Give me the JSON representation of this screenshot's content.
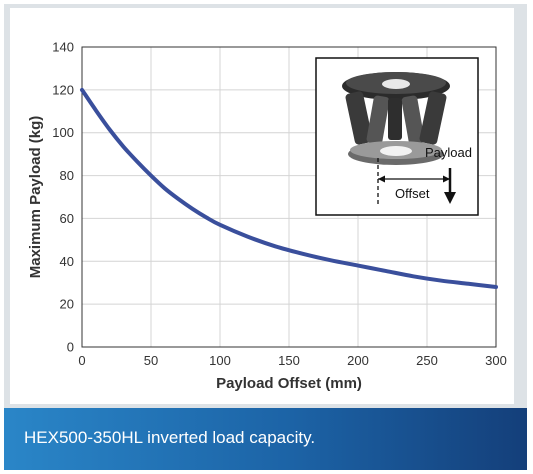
{
  "chart_data": {
    "type": "line",
    "title": "",
    "xlabel": "Payload Offset (mm)",
    "ylabel": "Maximum Payload (kg)",
    "xlim": [
      0,
      300
    ],
    "ylim": [
      0,
      140
    ],
    "xticks": [
      "0",
      "50",
      "100",
      "150",
      "200",
      "250",
      "300"
    ],
    "yticks": [
      "0",
      "20",
      "40",
      "60",
      "80",
      "100",
      "120",
      "140"
    ],
    "grid": true,
    "series": [
      {
        "color": "#3a4f9c",
        "x": [
          0,
          10,
          20,
          30,
          40,
          50,
          60,
          70,
          80,
          90,
          100,
          120,
          140,
          160,
          180,
          200,
          220,
          240,
          260,
          280,
          300
        ],
        "y": [
          120,
          110.5,
          101.5,
          93.5,
          86.5,
          80,
          74,
          69,
          64.5,
          60.5,
          57,
          51.5,
          47,
          43.5,
          40.5,
          38,
          35.5,
          33,
          31,
          29.5,
          28
        ]
      }
    ]
  },
  "inset": {
    "payload_label": "Payload",
    "offset_label": "Offset"
  },
  "caption": "HEX500-350HL inverted load capacity."
}
